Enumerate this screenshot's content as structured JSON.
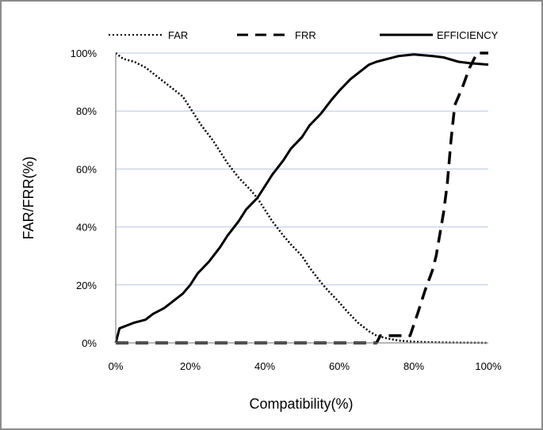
{
  "chart_data": {
    "type": "line",
    "title": "",
    "xlabel": "Compatibility(%)",
    "ylabel": "FAR/FRR(%)",
    "xlim": [
      0,
      100
    ],
    "ylim": [
      0,
      100
    ],
    "x_ticks": [
      "0%",
      "20%",
      "40%",
      "60%",
      "80%",
      "100%"
    ],
    "y_ticks": [
      "0%",
      "20%",
      "40%",
      "60%",
      "80%",
      "100%"
    ],
    "grid": "horizontal",
    "legend_position": "top",
    "series": [
      {
        "name": "FAR",
        "style": "dotted",
        "points": [
          [
            0,
            100
          ],
          [
            2,
            98
          ],
          [
            5,
            97
          ],
          [
            8,
            95
          ],
          [
            10,
            93
          ],
          [
            12,
            91
          ],
          [
            15,
            88
          ],
          [
            18,
            85
          ],
          [
            20,
            81
          ],
          [
            23,
            75
          ],
          [
            26,
            70
          ],
          [
            28,
            66
          ],
          [
            30,
            62
          ],
          [
            33,
            57
          ],
          [
            36,
            53
          ],
          [
            38,
            50
          ],
          [
            40,
            46
          ],
          [
            42,
            42
          ],
          [
            45,
            37
          ],
          [
            47,
            34
          ],
          [
            50,
            30
          ],
          [
            52,
            26
          ],
          [
            55,
            21
          ],
          [
            57,
            18
          ],
          [
            60,
            14
          ],
          [
            62,
            11
          ],
          [
            65,
            7
          ],
          [
            68,
            4
          ],
          [
            70,
            2.5
          ],
          [
            73,
            1.5
          ],
          [
            76,
            0.8
          ],
          [
            80,
            0.4
          ],
          [
            85,
            0.2
          ],
          [
            90,
            0.1
          ],
          [
            100,
            0
          ]
        ]
      },
      {
        "name": "FRR",
        "style": "dashed",
        "points": [
          [
            0,
            0
          ],
          [
            70,
            0
          ],
          [
            71,
            2.5
          ],
          [
            79,
            2.5
          ],
          [
            81,
            10
          ],
          [
            83,
            18
          ],
          [
            85,
            25
          ],
          [
            86,
            30
          ],
          [
            88,
            45
          ],
          [
            89,
            55
          ],
          [
            90,
            70
          ],
          [
            91,
            82
          ],
          [
            93,
            88
          ],
          [
            95,
            95
          ],
          [
            97,
            100
          ],
          [
            100,
            100
          ]
        ]
      },
      {
        "name": "EFFICIENCY",
        "style": "solid",
        "points": [
          [
            0,
            0
          ],
          [
            1,
            5
          ],
          [
            3,
            6
          ],
          [
            5,
            7
          ],
          [
            8,
            8
          ],
          [
            10,
            10
          ],
          [
            13,
            12
          ],
          [
            15,
            14
          ],
          [
            18,
            17
          ],
          [
            20,
            20
          ],
          [
            22,
            24
          ],
          [
            25,
            28
          ],
          [
            28,
            33
          ],
          [
            30,
            37
          ],
          [
            33,
            42
          ],
          [
            35,
            46
          ],
          [
            38,
            50
          ],
          [
            40,
            54
          ],
          [
            42,
            58
          ],
          [
            45,
            63
          ],
          [
            47,
            67
          ],
          [
            50,
            71
          ],
          [
            52,
            75
          ],
          [
            55,
            79
          ],
          [
            58,
            84
          ],
          [
            60,
            87
          ],
          [
            63,
            91
          ],
          [
            65,
            93
          ],
          [
            68,
            96
          ],
          [
            70,
            97
          ],
          [
            73,
            98
          ],
          [
            76,
            99
          ],
          [
            80,
            99.5
          ],
          [
            85,
            99
          ],
          [
            88,
            98.5
          ],
          [
            92,
            97
          ],
          [
            95,
            96.5
          ],
          [
            100,
            96
          ]
        ]
      }
    ]
  }
}
